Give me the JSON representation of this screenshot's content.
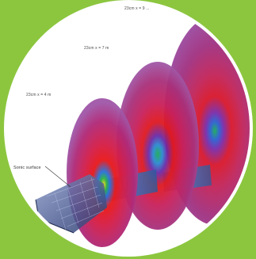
{
  "figure": {
    "labels": {
      "slice_near": "23cm x = 4 m",
      "slice_mid": "23cm x = 7 m",
      "slice_far": "23cm x = 9 ...",
      "sonic_surface": "Sonic surface"
    },
    "colors": {
      "background": "#8cc63f",
      "frame": "#ffffff",
      "slice_outer": "#8a3a96",
      "slice_inner": "#d6141e",
      "slice_core": "#1a9a4a",
      "body": "#4a5a8a"
    }
  }
}
